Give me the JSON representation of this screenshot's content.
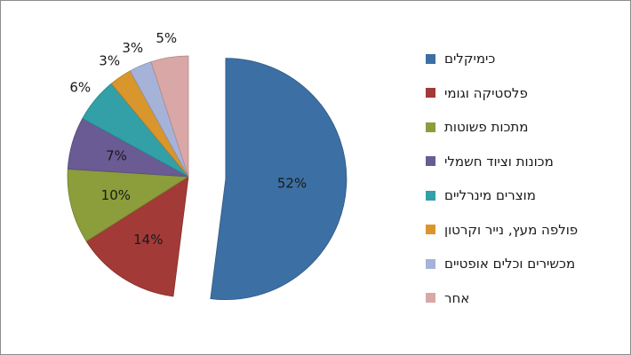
{
  "chart_data": {
    "type": "pie",
    "categories": [
      "כימיקלים",
      "פלסטיקה וגומי",
      "מתכות פשוטות",
      "מכונות וציוד חשמלי",
      "מוצרים מינרליים",
      "פולפה מעץ, נייר וקרטון",
      "מכשירים וכלים אופטיים",
      "אחר"
    ],
    "values": [
      52,
      14,
      10,
      7,
      6,
      3,
      3,
      5
    ],
    "labels": [
      "52%",
      "14%",
      "10%",
      "7%",
      "6%",
      "3%",
      "3%",
      "5%"
    ],
    "colors": [
      "#3c6fa3",
      "#a23a37",
      "#8c9d3b",
      "#6a5b94",
      "#32a0a6",
      "#d9962d",
      "#a6b3d9",
      "#d8a7a6"
    ],
    "exploded": [
      true,
      false,
      false,
      false,
      false,
      false,
      false,
      false
    ],
    "legend_position": "right"
  }
}
